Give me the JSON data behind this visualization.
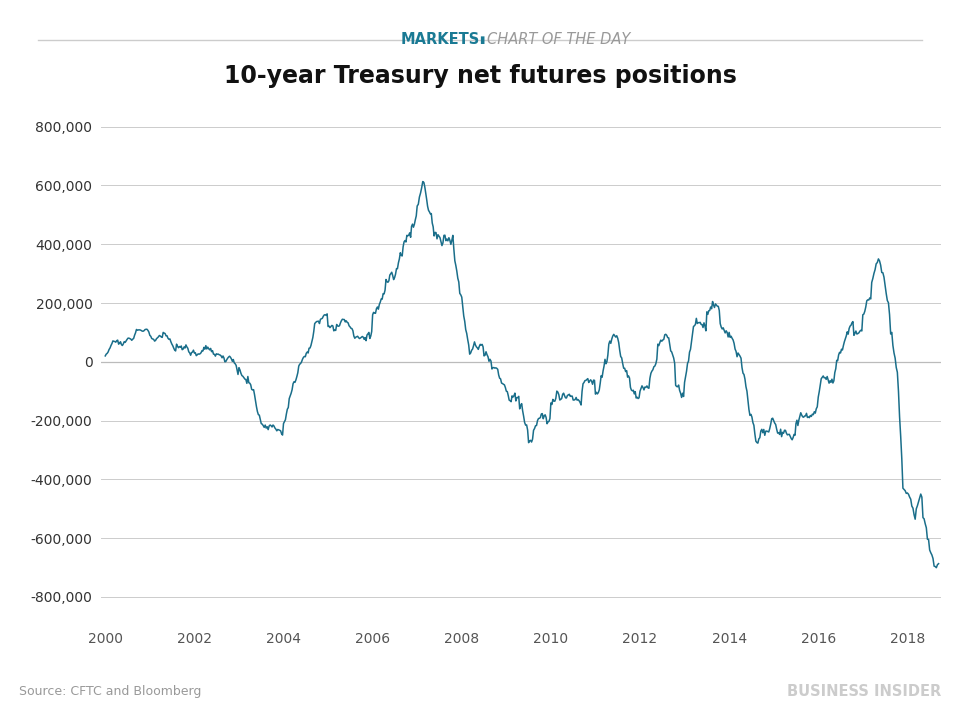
{
  "title": "10-year Treasury net futures positions",
  "header_markets": "MARKETS",
  "header_cotd": "CHART OF THE DAY",
  "source_text": "Source: CFTC and Bloomberg",
  "brand_text": "BUSINESS INSIDER",
  "line_color": "#1a6e8a",
  "background_color": "#ffffff",
  "grid_color": "#cccccc",
  "zero_line_color": "#bbbbbb",
  "header_line_color": "#cccccc",
  "ylim": [
    -900000,
    900000
  ],
  "yticks": [
    -800000,
    -600000,
    -400000,
    -200000,
    0,
    200000,
    400000,
    600000,
    800000
  ],
  "xlim_start": 1999.9,
  "xlim_end": 2018.75,
  "xticks": [
    2000,
    2002,
    2004,
    2006,
    2008,
    2010,
    2012,
    2014,
    2016,
    2018
  ],
  "segments": [
    [
      2000.0,
      2000.3,
      20000,
      60000,
      12000
    ],
    [
      2000.3,
      2000.7,
      60000,
      110000,
      15000
    ],
    [
      2000.7,
      2001.0,
      110000,
      90000,
      12000
    ],
    [
      2001.0,
      2001.3,
      90000,
      100000,
      15000
    ],
    [
      2001.3,
      2001.6,
      100000,
      60000,
      15000
    ],
    [
      2001.6,
      2002.0,
      60000,
      30000,
      15000
    ],
    [
      2002.0,
      2002.3,
      30000,
      50000,
      18000
    ],
    [
      2002.3,
      2002.6,
      50000,
      20000,
      18000
    ],
    [
      2002.6,
      2003.0,
      20000,
      -20000,
      20000
    ],
    [
      2003.0,
      2003.2,
      -20000,
      -50000,
      22000
    ],
    [
      2003.2,
      2003.5,
      -50000,
      -210000,
      25000
    ],
    [
      2003.5,
      2003.7,
      -210000,
      -215000,
      20000
    ],
    [
      2003.7,
      2004.0,
      -215000,
      -210000,
      18000
    ],
    [
      2004.0,
      2004.3,
      -210000,
      -50000,
      25000
    ],
    [
      2004.3,
      2004.7,
      -50000,
      130000,
      25000
    ],
    [
      2004.7,
      2005.0,
      130000,
      120000,
      20000
    ],
    [
      2005.0,
      2005.3,
      120000,
      140000,
      20000
    ],
    [
      2005.3,
      2005.6,
      140000,
      80000,
      20000
    ],
    [
      2005.6,
      2006.0,
      80000,
      160000,
      25000
    ],
    [
      2006.0,
      2006.3,
      160000,
      280000,
      30000
    ],
    [
      2006.3,
      2006.6,
      280000,
      350000,
      30000
    ],
    [
      2006.6,
      2007.0,
      350000,
      530000,
      35000
    ],
    [
      2007.0,
      2007.15,
      530000,
      610000,
      25000
    ],
    [
      2007.15,
      2007.4,
      610000,
      440000,
      35000
    ],
    [
      2007.4,
      2007.6,
      440000,
      430000,
      30000
    ],
    [
      2007.6,
      2007.8,
      430000,
      430000,
      30000
    ],
    [
      2007.8,
      2008.0,
      430000,
      220000,
      35000
    ],
    [
      2008.0,
      2008.2,
      220000,
      30000,
      35000
    ],
    [
      2008.2,
      2008.5,
      30000,
      20000,
      30000
    ],
    [
      2008.5,
      2008.7,
      20000,
      -20000,
      30000
    ],
    [
      2008.7,
      2009.0,
      -20000,
      -100000,
      30000
    ],
    [
      2009.0,
      2009.3,
      -100000,
      -160000,
      30000
    ],
    [
      2009.3,
      2009.5,
      -160000,
      -275000,
      28000
    ],
    [
      2009.5,
      2009.7,
      -275000,
      -200000,
      28000
    ],
    [
      2009.7,
      2010.0,
      -200000,
      -140000,
      28000
    ],
    [
      2010.0,
      2010.2,
      -140000,
      -130000,
      28000
    ],
    [
      2010.2,
      2010.5,
      -130000,
      -130000,
      28000
    ],
    [
      2010.5,
      2010.7,
      -130000,
      -100000,
      28000
    ],
    [
      2010.7,
      2011.0,
      -100000,
      -110000,
      28000
    ],
    [
      2011.0,
      2011.3,
      -110000,
      60000,
      30000
    ],
    [
      2011.3,
      2011.5,
      60000,
      80000,
      25000
    ],
    [
      2011.5,
      2011.7,
      80000,
      -30000,
      28000
    ],
    [
      2011.7,
      2012.0,
      -30000,
      -100000,
      28000
    ],
    [
      2012.0,
      2012.2,
      -100000,
      -90000,
      28000
    ],
    [
      2012.2,
      2012.4,
      -90000,
      60000,
      30000
    ],
    [
      2012.4,
      2012.6,
      60000,
      90000,
      28000
    ],
    [
      2012.6,
      2012.8,
      90000,
      -80000,
      30000
    ],
    [
      2012.8,
      2013.0,
      -80000,
      -70000,
      28000
    ],
    [
      2013.0,
      2013.2,
      -70000,
      120000,
      30000
    ],
    [
      2013.2,
      2013.5,
      120000,
      170000,
      28000
    ],
    [
      2013.5,
      2013.8,
      170000,
      130000,
      28000
    ],
    [
      2013.8,
      2014.0,
      130000,
      100000,
      25000
    ],
    [
      2014.0,
      2014.2,
      100000,
      30000,
      25000
    ],
    [
      2014.2,
      2014.4,
      30000,
      -100000,
      28000
    ],
    [
      2014.4,
      2014.6,
      -100000,
      -270000,
      28000
    ],
    [
      2014.6,
      2014.8,
      -270000,
      -250000,
      25000
    ],
    [
      2014.8,
      2015.0,
      -250000,
      -200000,
      25000
    ],
    [
      2015.0,
      2015.2,
      -200000,
      -240000,
      25000
    ],
    [
      2015.2,
      2015.5,
      -240000,
      -210000,
      25000
    ],
    [
      2015.5,
      2015.8,
      -210000,
      -190000,
      28000
    ],
    [
      2015.8,
      2016.0,
      -190000,
      -120000,
      28000
    ],
    [
      2016.0,
      2016.2,
      -120000,
      -50000,
      28000
    ],
    [
      2016.2,
      2016.5,
      -50000,
      30000,
      28000
    ],
    [
      2016.5,
      2016.8,
      30000,
      90000,
      28000
    ],
    [
      2016.8,
      2017.0,
      90000,
      160000,
      28000
    ],
    [
      2017.0,
      2017.2,
      160000,
      270000,
      30000
    ],
    [
      2017.2,
      2017.35,
      270000,
      350000,
      28000
    ],
    [
      2017.35,
      2017.5,
      350000,
      260000,
      28000
    ],
    [
      2017.5,
      2017.65,
      260000,
      100000,
      30000
    ],
    [
      2017.65,
      2017.8,
      100000,
      -100000,
      35000
    ],
    [
      2017.8,
      2017.9,
      -100000,
      -430000,
      35000
    ],
    [
      2017.9,
      2018.05,
      -430000,
      -460000,
      30000
    ],
    [
      2018.05,
      2018.2,
      -460000,
      -500000,
      30000
    ],
    [
      2018.2,
      2018.35,
      -500000,
      -530000,
      28000
    ],
    [
      2018.35,
      2018.5,
      -530000,
      -640000,
      30000
    ],
    [
      2018.5,
      2018.6,
      -640000,
      -695000,
      25000
    ],
    [
      2018.6,
      2018.7,
      -695000,
      -690000,
      20000
    ]
  ]
}
